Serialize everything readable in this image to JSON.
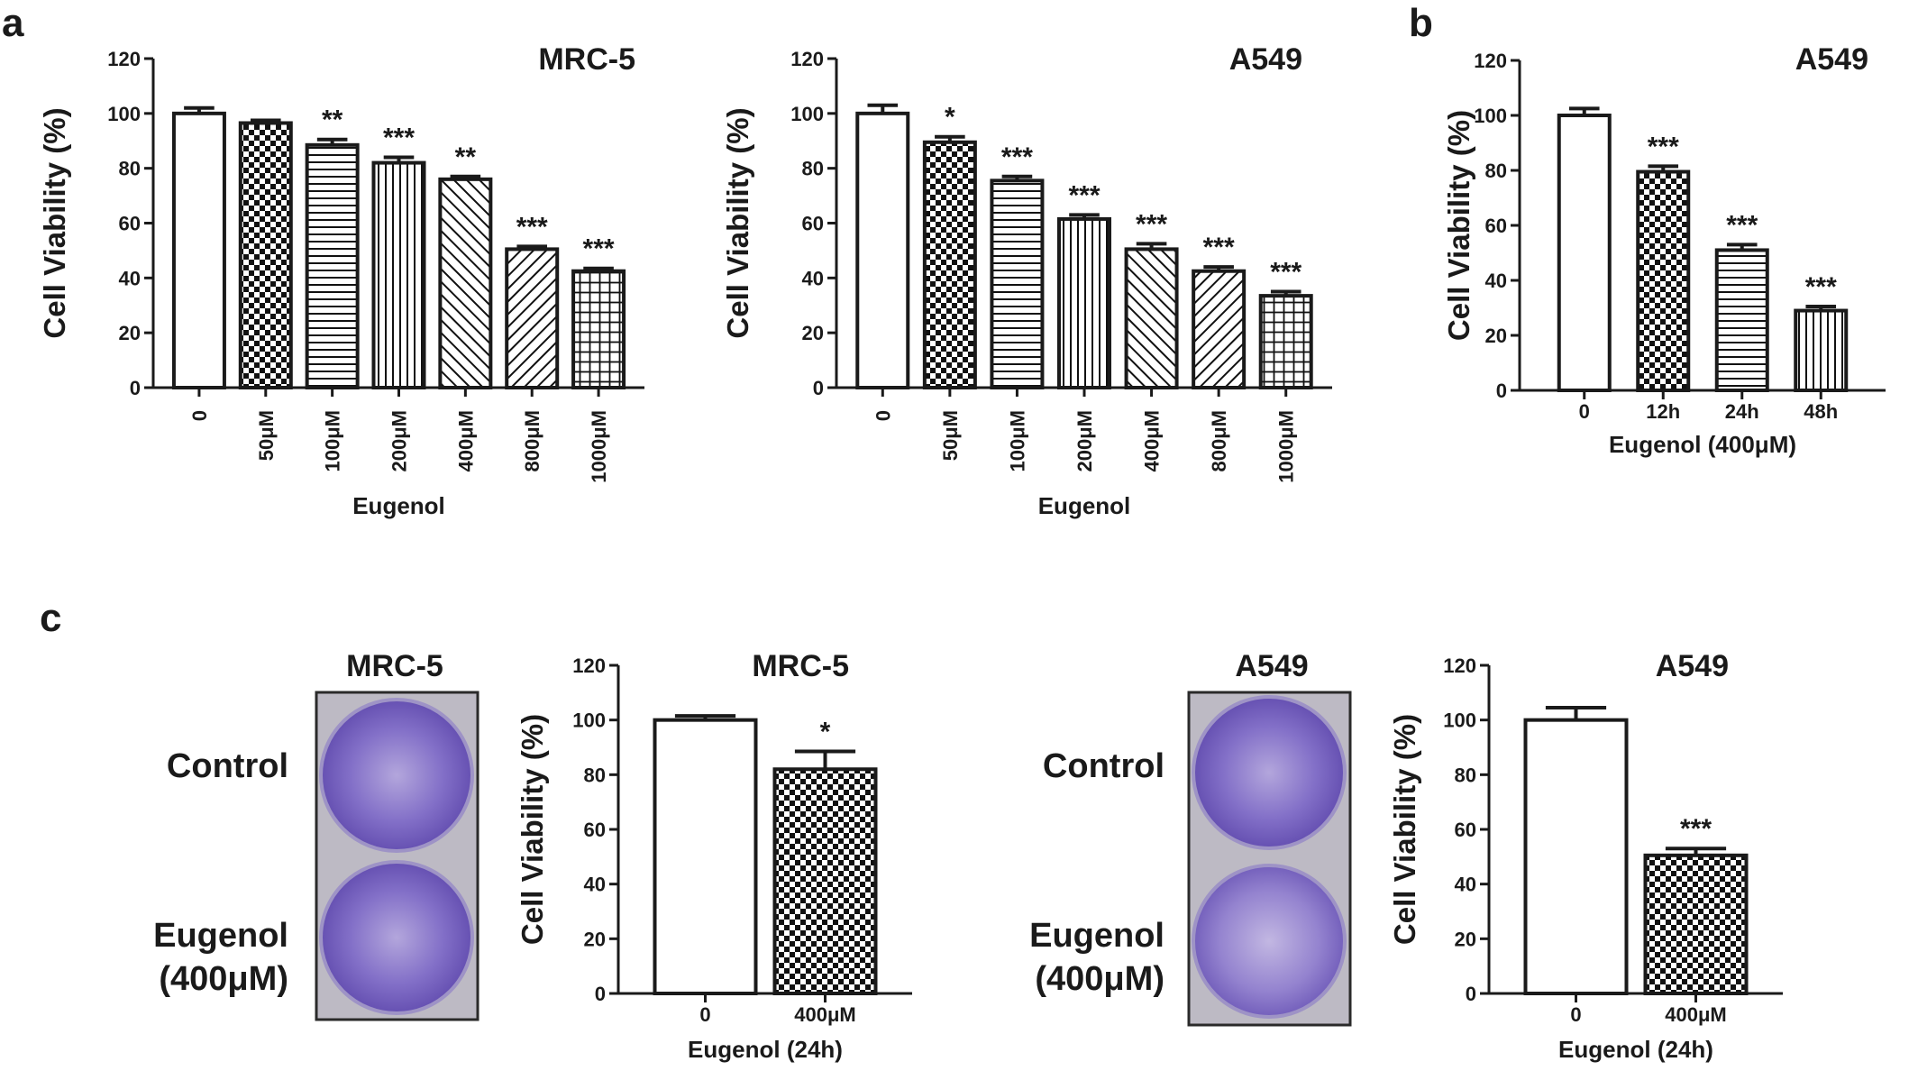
{
  "panel_labels": [
    "a",
    "b",
    "c"
  ],
  "plate_images": [
    {
      "title": "MRC-5",
      "row_labels": [
        "Control",
        "Eugenol",
        "(400μM)"
      ],
      "dish_color": "#6e58b8",
      "frame_color": "#2a2a2a",
      "background": "#b9b6c2"
    },
    {
      "title": "A549",
      "row_labels": [
        "Control",
        "Eugenol",
        "(400μM)"
      ],
      "dish_color": "#7a66c2",
      "frame_color": "#2a2a2a",
      "background": "#b9b6c2"
    }
  ],
  "chart_data": [
    {
      "type": "bar",
      "title": "MRC-5",
      "xlabel": "Eugenol",
      "ylabel": "Cell Viability (%)",
      "ylim": [
        0,
        120
      ],
      "yticks": [
        0,
        20,
        40,
        60,
        80,
        100,
        120
      ],
      "categories": [
        "0",
        "50μM",
        "100μM",
        "200μM",
        "400μM",
        "800μM",
        "1000μM"
      ],
      "values": [
        100,
        96.5,
        88.5,
        82,
        76,
        50.5,
        42.5
      ],
      "errors": [
        2,
        1,
        2,
        2,
        1,
        1,
        1
      ],
      "significance": [
        "",
        "",
        "**",
        "***",
        "**",
        "***",
        "***"
      ],
      "patterns": [
        "white",
        "checker",
        "hlines",
        "vlines",
        "diag-right",
        "diag-left",
        "grid"
      ],
      "rotated_category_labels": true
    },
    {
      "type": "bar",
      "title": "A549",
      "xlabel": "Eugenol",
      "ylabel": "Cell Viability (%)",
      "ylim": [
        0,
        120
      ],
      "yticks": [
        0,
        20,
        40,
        60,
        80,
        100,
        120
      ],
      "categories": [
        "0",
        "50μM",
        "100μM",
        "200μM",
        "400μM",
        "800μM",
        "1000μM"
      ],
      "values": [
        100,
        89.5,
        75.5,
        61.5,
        50.5,
        42.5,
        33.5
      ],
      "errors": [
        3,
        2,
        1.5,
        1.5,
        2,
        1.5,
        1.5
      ],
      "significance": [
        "",
        "*",
        "***",
        "***",
        "***",
        "***",
        "***"
      ],
      "patterns": [
        "white",
        "checker",
        "hlines",
        "vlines",
        "diag-right",
        "diag-left",
        "grid"
      ],
      "rotated_category_labels": true
    },
    {
      "type": "bar",
      "title": "A549",
      "xlabel": "Eugenol (400μM)",
      "ylabel": "Cell Viability (%)",
      "ylim": [
        0,
        120
      ],
      "yticks": [
        0,
        20,
        40,
        60,
        80,
        100,
        120
      ],
      "categories": [
        "0",
        "12h",
        "24h",
        "48h"
      ],
      "values": [
        100,
        79.5,
        51,
        29
      ],
      "errors": [
        2.5,
        2,
        2,
        1.5
      ],
      "significance": [
        "",
        "***",
        "***",
        "***"
      ],
      "patterns": [
        "white",
        "checker",
        "hlines",
        "vlines"
      ],
      "rotated_category_labels": false
    },
    {
      "type": "bar",
      "title": "MRC-5",
      "xlabel": "Eugenol (24h)",
      "ylabel": "Cell Viability (%)",
      "ylim": [
        0,
        120
      ],
      "yticks": [
        0,
        20,
        40,
        60,
        80,
        100,
        120
      ],
      "categories": [
        "0",
        "400μM"
      ],
      "values": [
        100,
        82
      ],
      "errors": [
        1.5,
        6.5
      ],
      "significance": [
        "",
        "*"
      ],
      "patterns": [
        "white",
        "checker"
      ],
      "rotated_category_labels": false
    },
    {
      "type": "bar",
      "title": "A549",
      "xlabel": "Eugenol (24h)",
      "ylabel": "Cell Viability (%)",
      "ylim": [
        0,
        120
      ],
      "yticks": [
        0,
        20,
        40,
        60,
        80,
        100,
        120
      ],
      "categories": [
        "0",
        "400μM"
      ],
      "values": [
        100,
        50.5
      ],
      "errors": [
        4.5,
        2.5
      ],
      "significance": [
        "",
        "***"
      ],
      "patterns": [
        "white",
        "checker"
      ],
      "rotated_category_labels": false
    }
  ]
}
